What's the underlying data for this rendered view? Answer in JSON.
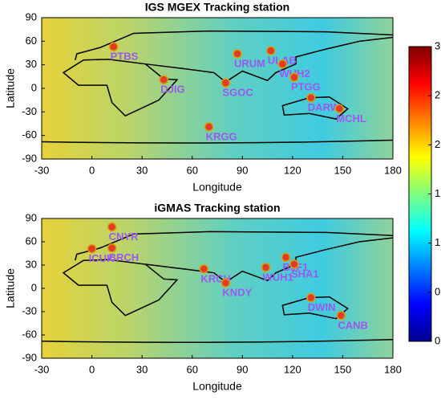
{
  "chart_data": [
    {
      "type": "scatter",
      "title": "IGS MGEX Tracking station",
      "xlabel": "Longitude",
      "ylabel": "Latitude",
      "xlim": [
        -30,
        180
      ],
      "ylim": [
        -90,
        90
      ],
      "xticks": [
        -30,
        0,
        30,
        60,
        90,
        120,
        150,
        180
      ],
      "yticks": [
        -90,
        -60,
        -30,
        0,
        30,
        60,
        90
      ],
      "color": "#e23b2a",
      "labels": [
        "PTBS",
        "DJIG",
        "URUM",
        "SGOC",
        "ULAB",
        "WUH2",
        "PTGG",
        "DARW",
        "MCHL",
        "KRGG"
      ],
      "x": [
        13,
        43,
        87,
        80,
        107,
        114,
        121,
        131,
        148,
        70
      ],
      "values": [
        53,
        11,
        44,
        7,
        48,
        31,
        14,
        -12,
        -26,
        -49
      ]
    },
    {
      "type": "scatter",
      "title": "iGMAS Tracking station",
      "xlabel": "Longitude",
      "ylabel": "Latitude",
      "xlim": [
        -30,
        180
      ],
      "ylim": [
        -90,
        90
      ],
      "xticks": [
        -30,
        0,
        30,
        60,
        90,
        120,
        150,
        180
      ],
      "yticks": [
        -90,
        -60,
        -30,
        0,
        30,
        60,
        90
      ],
      "color": "#e23b2a",
      "labels": [
        "CNYR",
        "ICUK",
        "BRCH",
        "KRCH",
        "KNDY",
        "WUH1",
        "BJF1",
        "SHA1",
        "DWIN",
        "CANB"
      ],
      "x": [
        12,
        0,
        12,
        67,
        80,
        104,
        116,
        121,
        131,
        149
      ],
      "values": [
        79,
        51,
        52,
        25,
        7,
        27,
        40,
        31,
        -12,
        -35
      ]
    },
    {
      "type": "colorbar",
      "ylim": [
        0,
        3
      ],
      "yticks": [
        0,
        0.5,
        1,
        1.5,
        2,
        2.5,
        3
      ]
    }
  ]
}
